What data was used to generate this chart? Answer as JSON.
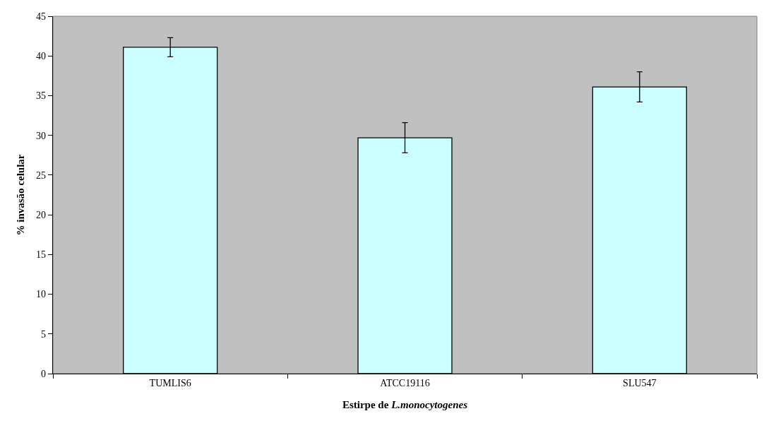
{
  "chart_data": {
    "type": "bar",
    "xlabel": "Estirpe de L.monocytogenes",
    "ylabel": "% invasão celular",
    "categories": [
      "TUMLIS6",
      "ATCC19116",
      "SLU547"
    ],
    "values": [
      41.1,
      29.7,
      36.1
    ],
    "errors": [
      1.2,
      1.9,
      1.9
    ],
    "color": "#ccffff",
    "ylim": [
      0,
      45
    ],
    "yticks": [
      0,
      5,
      10,
      15,
      20,
      25,
      30,
      35,
      40,
      45
    ],
    "grid": false
  }
}
